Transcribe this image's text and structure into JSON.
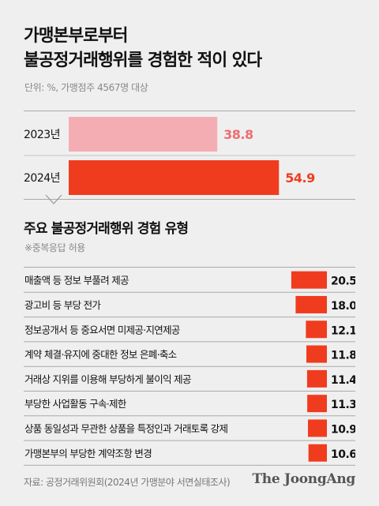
{
  "title_line1": "가맹본부로부터",
  "title_line2": "불공정거래행위를 경험한 적이 있다",
  "unit": "단위: %, 가맹점주 4567명 대상",
  "subtitle": "주요 불공정거래행위 경험 유형",
  "note": "※중복응답 허용",
  "source": "자료: 공정거래위원회(2024년 가맹분야 서면실태조사)",
  "brand": "The JoongAng",
  "colors": {
    "bar_2023": "#f4aeb3",
    "bar_2024": "#f03c1e",
    "label_2023": "#ef6d71",
    "label_2024": "#f03c1e",
    "bar_types": "#f03c1e"
  },
  "chart_data": [
    {
      "type": "bar",
      "orientation": "horizontal",
      "categories": [
        "2023년",
        "2024년"
      ],
      "values": [
        38.8,
        54.9
      ]
    },
    {
      "type": "bar",
      "orientation": "horizontal",
      "categories": [
        "매출액 등 정보 부풀려 제공",
        "광고비 등 부당 전가",
        "정보공개서 등 중요서면 미제공·지연제공",
        "계약 체결·유지에 중대한 정보 은폐·축소",
        "거래상 지위를 이용해 부당하게 불이익 제공",
        "부당한 사업활동 구속·제한",
        "상품 동일성과 무관한 상품을 특정인과 거래토록 강제",
        "가맹본부의 부당한 계약조항 변경"
      ],
      "values": [
        20.5,
        18.0,
        12.1,
        11.8,
        11.4,
        11.3,
        10.9,
        10.6
      ],
      "value_labels": [
        "20.5",
        "18.0",
        "12.1",
        "11.8",
        "11.4",
        "11.3",
        "10.9",
        "10.6"
      ]
    }
  ]
}
